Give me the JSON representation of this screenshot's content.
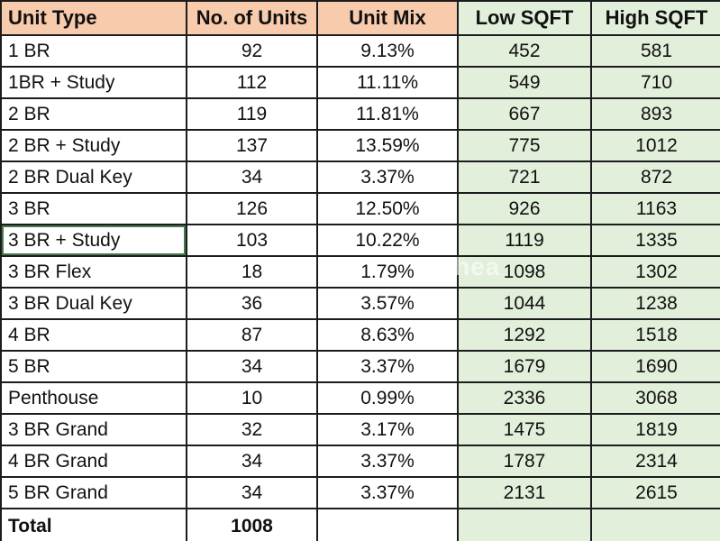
{
  "table": {
    "columns": [
      {
        "label": "Unit Type",
        "theme": "peach"
      },
      {
        "label": "No. of Units",
        "theme": "peach"
      },
      {
        "label": "Unit Mix",
        "theme": "peach"
      },
      {
        "label": "Low SQFT",
        "theme": "green"
      },
      {
        "label": "High SQFT",
        "theme": "green"
      }
    ],
    "rows": [
      {
        "unit_type": "1 BR",
        "units": "92",
        "mix": "9.13%",
        "low": "452",
        "high": "581"
      },
      {
        "unit_type": "1BR + Study",
        "units": "112",
        "mix": "11.11%",
        "low": "549",
        "high": "710"
      },
      {
        "unit_type": "2 BR",
        "units": "119",
        "mix": "11.81%",
        "low": "667",
        "high": "893"
      },
      {
        "unit_type": "2 BR + Study",
        "units": "137",
        "mix": "13.59%",
        "low": "775",
        "high": "1012"
      },
      {
        "unit_type": "2 BR Dual Key",
        "units": "34",
        "mix": "3.37%",
        "low": "721",
        "high": "872"
      },
      {
        "unit_type": "3 BR",
        "units": "126",
        "mix": "12.50%",
        "low": "926",
        "high": "1163"
      },
      {
        "unit_type": "3 BR + Study",
        "units": "103",
        "mix": "10.22%",
        "low": "1119",
        "high": "1335"
      },
      {
        "unit_type": "3 BR Flex",
        "units": "18",
        "mix": "1.79%",
        "low": "1098",
        "high": "1302"
      },
      {
        "unit_type": "3 BR Dual Key",
        "units": "36",
        "mix": "3.57%",
        "low": "1044",
        "high": "1238"
      },
      {
        "unit_type": "4 BR",
        "units": "87",
        "mix": "8.63%",
        "low": "1292",
        "high": "1518"
      },
      {
        "unit_type": "5 BR",
        "units": "34",
        "mix": "3.37%",
        "low": "1679",
        "high": "1690"
      },
      {
        "unit_type": "Penthouse",
        "units": "10",
        "mix": "0.99%",
        "low": "2336",
        "high": "3068"
      },
      {
        "unit_type": "3 BR Grand",
        "units": "32",
        "mix": "3.17%",
        "low": "1475",
        "high": "1819"
      },
      {
        "unit_type": "4 BR Grand",
        "units": "34",
        "mix": "3.37%",
        "low": "1787",
        "high": "2314"
      },
      {
        "unit_type": "5 BR Grand",
        "units": "34",
        "mix": "3.37%",
        "low": "2131",
        "high": "2615"
      }
    ],
    "total": {
      "label": "Total",
      "units": "1008",
      "mix": "",
      "low": "",
      "high": ""
    },
    "selected_row_index": 6
  },
  "colors": {
    "header_peach": "#F8CBAD",
    "cell_green": "#E2EFDA",
    "border": "#1c1c1c"
  },
  "watermark": "nhea"
}
